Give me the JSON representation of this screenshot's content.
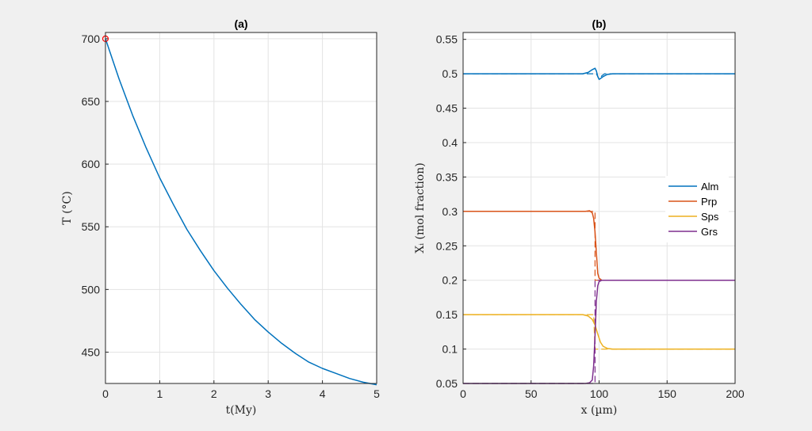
{
  "chart_data": [
    {
      "type": "line",
      "title": "(a)",
      "xlabel": "t(My)",
      "ylabel": "T (°C)",
      "xlim": [
        0,
        5
      ],
      "ylim": [
        425,
        705
      ],
      "xticks": [
        "0",
        "1",
        "2",
        "3",
        "4",
        "5"
      ],
      "yticks": [
        "450",
        "500",
        "550",
        "600",
        "650",
        "700"
      ],
      "grid": true,
      "series": [
        {
          "color": "#0072BD",
          "x": [
            0,
            0.25,
            0.5,
            0.75,
            1,
            1.25,
            1.5,
            1.75,
            2,
            2.25,
            2.5,
            2.75,
            3,
            3.25,
            3.5,
            3.75,
            4,
            4.25,
            4.5,
            4.75,
            5
          ],
          "y": [
            700,
            668,
            639,
            613,
            589,
            568,
            548,
            531,
            515,
            501,
            488,
            476,
            466,
            457,
            449,
            442,
            437,
            433,
            429,
            426,
            424
          ]
        }
      ],
      "marker": {
        "x": 0,
        "y": 700,
        "color": "#ff0000",
        "shape": "circle"
      }
    },
    {
      "type": "line",
      "title": "(b)",
      "xlabel": "x (µm)",
      "ylabel": "Xᵢ (mol fraction)",
      "xlim": [
        0,
        200
      ],
      "ylim": [
        0.05,
        0.56
      ],
      "xticks": [
        "0",
        "50",
        "100",
        "150",
        "200"
      ],
      "yticks": [
        "0.05",
        "0.1",
        "0.15",
        "0.2",
        "0.25",
        "0.3",
        "0.35",
        "0.4",
        "0.45",
        "0.5",
        "0.55"
      ],
      "grid": true,
      "legend_position": "right",
      "series": [
        {
          "name": "Alm",
          "color": "#0072BD",
          "x": [
            0,
            88,
            92,
            95,
            97,
            98,
            99,
            100,
            101,
            103,
            106,
            110,
            115,
            200
          ],
          "y": [
            0.5,
            0.5,
            0.502,
            0.506,
            0.508,
            0.504,
            0.496,
            0.492,
            0.493,
            0.496,
            0.499,
            0.5,
            0.5,
            0.5
          ]
        },
        {
          "name": "Prp",
          "color": "#D95319",
          "x": [
            0,
            90,
            93,
            95,
            96,
            97,
            98,
            99,
            100,
            102,
            105,
            110,
            200
          ],
          "y": [
            0.3,
            0.3,
            0.301,
            0.298,
            0.29,
            0.27,
            0.24,
            0.21,
            0.203,
            0.2,
            0.2,
            0.2,
            0.2
          ]
        },
        {
          "name": "Sps",
          "color": "#EDB120",
          "x": [
            0,
            88,
            92,
            95,
            97,
            99,
            101,
            103,
            106,
            110,
            115,
            200
          ],
          "y": [
            0.15,
            0.15,
            0.148,
            0.143,
            0.135,
            0.122,
            0.11,
            0.104,
            0.101,
            0.1,
            0.1,
            0.1
          ]
        },
        {
          "name": "Grs",
          "color": "#7E2F8E",
          "x": [
            0,
            90,
            93,
            95,
            96,
            97,
            98,
            99,
            100,
            102,
            105,
            110,
            200
          ],
          "y": [
            0.05,
            0.05,
            0.051,
            0.055,
            0.075,
            0.12,
            0.17,
            0.192,
            0.198,
            0.2,
            0.2,
            0.2,
            0.2
          ]
        }
      ],
      "dashed_series": [
        {
          "color": "#0072BD",
          "x": [
            0,
            98,
            100,
            102,
            104,
            200
          ],
          "y": [
            0.5,
            0.5,
            0.492,
            0.497,
            0.5,
            0.5
          ]
        },
        {
          "color": "#D95319",
          "x": [
            0,
            97,
            97,
            200
          ],
          "y": [
            0.3,
            0.3,
            0.2,
            0.2
          ]
        },
        {
          "color": "#EDB120",
          "x": [
            0,
            96,
            97,
            200
          ],
          "y": [
            0.15,
            0.15,
            0.1,
            0.1
          ]
        },
        {
          "color": "#7E2F8E",
          "x": [
            0,
            97,
            97,
            200
          ],
          "y": [
            0.05,
            0.05,
            0.2,
            0.2
          ]
        }
      ]
    }
  ]
}
